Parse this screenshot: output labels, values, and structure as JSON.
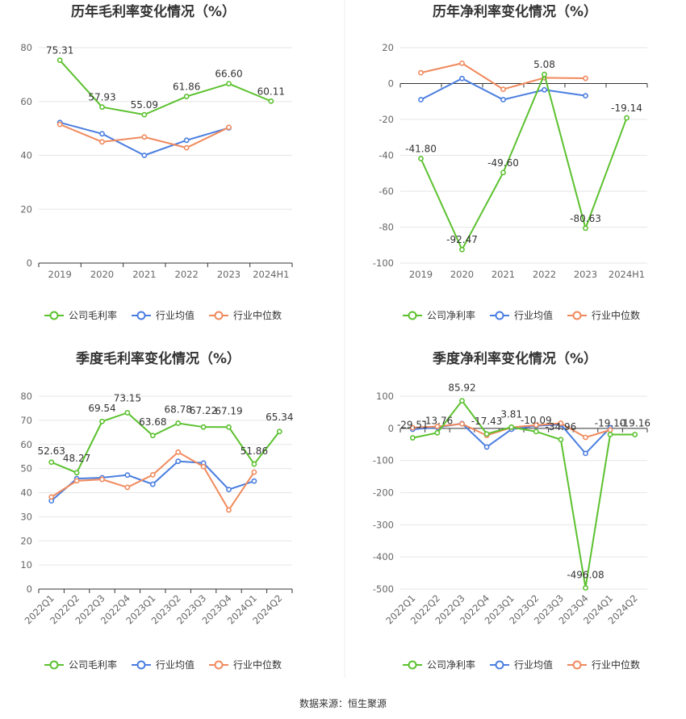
{
  "source": "数据来源：恒生聚源",
  "colors": {
    "company": "#5cc12f",
    "industry_avg": "#4a7ee0",
    "industry_median": "#f08a5d"
  },
  "chart_data": [
    {
      "id": "annual-gross",
      "type": "line",
      "title": "历年毛利率变化情况（%）",
      "categories": [
        "2019",
        "2020",
        "2021",
        "2022",
        "2023",
        "2024H1"
      ],
      "ylim": [
        0,
        80
      ],
      "yticks": [
        0,
        20,
        40,
        60,
        80
      ],
      "legend_position": "bottom",
      "grid": true,
      "series": [
        {
          "name": "公司毛利率",
          "values": [
            75.31,
            57.93,
            55.09,
            61.86,
            66.6,
            60.11
          ],
          "labels": [
            "75.31",
            "57.93",
            "55.09",
            "61.86",
            "66.60",
            "60.11"
          ]
        },
        {
          "name": "行业均值",
          "values": [
            52.2,
            48.0,
            40.0,
            45.6,
            50.2,
            null
          ]
        },
        {
          "name": "行业中位数",
          "values": [
            51.5,
            45.0,
            46.8,
            42.8,
            50.4,
            null
          ]
        }
      ]
    },
    {
      "id": "annual-net",
      "type": "line",
      "title": "历年净利率变化情况（%）",
      "categories": [
        "2019",
        "2020",
        "2021",
        "2022",
        "2023",
        "2024H1"
      ],
      "ylim": [
        -100,
        20
      ],
      "yticks": [
        -100,
        -80,
        -60,
        -40,
        -20,
        0,
        20
      ],
      "legend_position": "bottom",
      "grid": true,
      "series": [
        {
          "name": "公司净利率",
          "values": [
            -41.8,
            -92.47,
            -49.6,
            5.08,
            -80.63,
            -19.14
          ],
          "labels": [
            "-41.80",
            "-92.47",
            "-49.60",
            "5.08",
            "-80.63",
            "-19.14"
          ]
        },
        {
          "name": "行业均值",
          "values": [
            -9.0,
            2.8,
            -9.0,
            -3.5,
            -6.8,
            null
          ]
        },
        {
          "name": "行业中位数",
          "values": [
            6.0,
            11.3,
            -3.2,
            3.2,
            2.9,
            null
          ]
        }
      ]
    },
    {
      "id": "quarterly-gross",
      "type": "line",
      "title": "季度毛利率变化情况（%）",
      "categories": [
        "2022Q1",
        "2022Q2",
        "2022Q3",
        "2022Q4",
        "2023Q1",
        "2023Q2",
        "2023Q3",
        "2023Q4",
        "2024Q1",
        "2024Q2"
      ],
      "ylim": [
        0,
        80
      ],
      "yticks": [
        0,
        10,
        20,
        30,
        40,
        50,
        60,
        70,
        80
      ],
      "legend_position": "bottom",
      "grid": true,
      "series": [
        {
          "name": "公司毛利率",
          "values": [
            52.63,
            48.27,
            69.54,
            73.15,
            63.68,
            68.78,
            67.22,
            67.19,
            51.86,
            65.34
          ],
          "labels": [
            "52.63",
            "48.27",
            "69.54",
            "73.15",
            "63.68",
            "68.78",
            "67.22",
            "67.19",
            "51.86",
            "65.34"
          ]
        },
        {
          "name": "行业均值",
          "values": [
            36.6,
            45.8,
            46.2,
            47.3,
            43.5,
            53.0,
            52.3,
            41.3,
            44.8,
            null
          ]
        },
        {
          "name": "行业中位数",
          "values": [
            38.2,
            44.9,
            45.5,
            42.2,
            47.4,
            56.8,
            50.8,
            32.8,
            48.5,
            null
          ]
        }
      ]
    },
    {
      "id": "quarterly-net",
      "type": "line",
      "title": "季度净利率变化情况（%）",
      "categories": [
        "2022Q1",
        "2022Q2",
        "2022Q3",
        "2022Q4",
        "2023Q1",
        "2023Q2",
        "2023Q3",
        "2023Q4",
        "2024Q1",
        "2024Q2"
      ],
      "ylim": [
        -500,
        100
      ],
      "yticks": [
        -500,
        -400,
        -300,
        -200,
        -100,
        0,
        100
      ],
      "legend_position": "bottom",
      "grid": true,
      "series": [
        {
          "name": "公司净利率",
          "values": [
            -29.51,
            -13.76,
            85.92,
            -17.43,
            3.81,
            -10.09,
            -34.96,
            -496.08,
            -19.1,
            -19.16
          ],
          "labels": [
            "-29.51",
            "-13.76",
            "85.92",
            "-17.43",
            "3.81",
            "-10.09",
            "-34.96",
            "-496.08",
            "-19.10",
            "-19.16"
          ]
        },
        {
          "name": "行业均值",
          "values": [
            -3.0,
            3.0,
            15.0,
            -58.0,
            -3.0,
            8.0,
            12.0,
            -78.0,
            2.0,
            null
          ]
        },
        {
          "name": "行业中位数",
          "values": [
            2.0,
            6.0,
            14.0,
            -22.0,
            3.0,
            10.0,
            16.0,
            -28.0,
            -5.0,
            null
          ]
        }
      ]
    }
  ]
}
